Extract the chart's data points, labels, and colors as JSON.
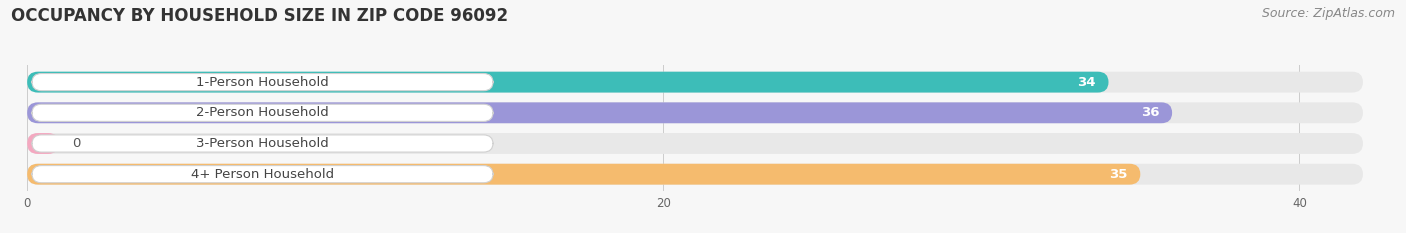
{
  "title": "OCCUPANCY BY HOUSEHOLD SIZE IN ZIP CODE 96092",
  "source": "Source: ZipAtlas.com",
  "categories": [
    "1-Person Household",
    "2-Person Household",
    "3-Person Household",
    "4+ Person Household"
  ],
  "values": [
    34,
    36,
    0,
    35
  ],
  "bar_colors": [
    "#3dbdb8",
    "#9b96d8",
    "#f4a8c0",
    "#f5bb6e"
  ],
  "xlim": [
    0,
    42
  ],
  "xticks": [
    0,
    20,
    40
  ],
  "bg_color": "#f7f7f7",
  "row_bg_color": "#e8e8e8",
  "title_fontsize": 12,
  "source_fontsize": 9,
  "label_fontsize": 9.5,
  "value_fontsize": 9.5,
  "bar_height": 0.68
}
